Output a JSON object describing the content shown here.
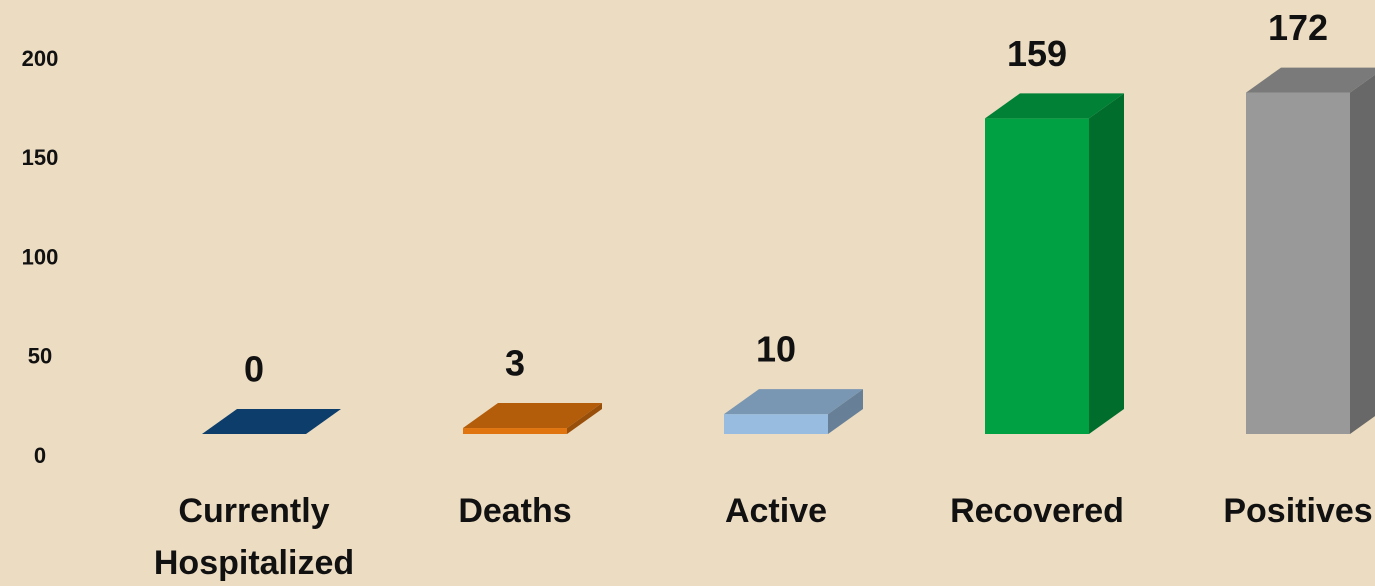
{
  "chart_data": {
    "type": "bar3d",
    "categories": [
      "Currently Hospitalized",
      "Deaths",
      "Active",
      "Recovered",
      "Positives"
    ],
    "values": [
      0,
      3,
      10,
      159,
      172
    ],
    "colors": [
      "#0f4c86",
      "#e0740e",
      "#97bcdf",
      "#00a142",
      "#999999"
    ],
    "ylim": [
      0,
      200
    ],
    "yticks": [
      0,
      50,
      100,
      150,
      200
    ],
    "grid": false
  }
}
